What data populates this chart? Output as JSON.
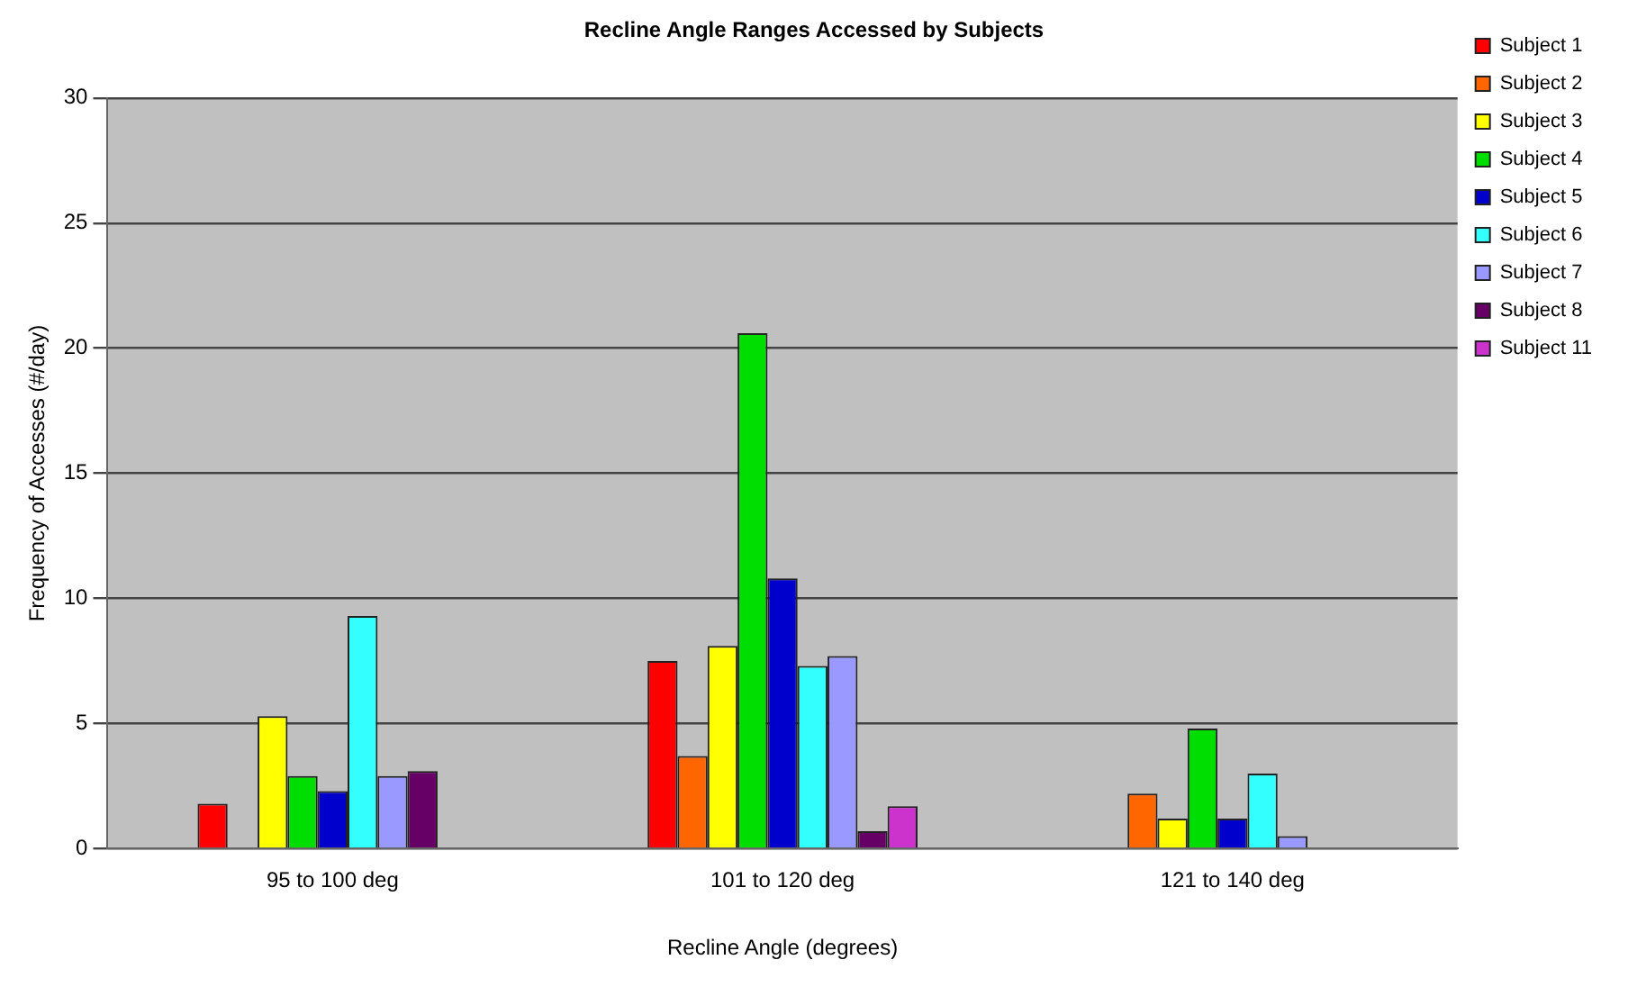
{
  "chart_data": {
    "type": "bar",
    "title": "Recline Angle Ranges Accessed by Subjects",
    "xlabel": "Recline Angle (degrees)",
    "ylabel": "Frequency of Accesses (#/day)",
    "categories": [
      "95 to 100 deg",
      "101 to 120 deg",
      "121 to 140 deg"
    ],
    "series": [
      {
        "name": "Subject 1",
        "color": "#ff0000",
        "values": [
          1.8,
          7.5,
          0
        ]
      },
      {
        "name": "Subject 2",
        "color": "#ff6600",
        "values": [
          null,
          3.7,
          2.2
        ]
      },
      {
        "name": "Subject 3",
        "color": "#ffff00",
        "values": [
          5.3,
          8.1,
          1.2
        ]
      },
      {
        "name": "Subject 4",
        "color": "#00dd00",
        "values": [
          2.9,
          20.6,
          4.8
        ]
      },
      {
        "name": "Subject 5",
        "color": "#0000cc",
        "values": [
          2.3,
          10.8,
          1.2
        ]
      },
      {
        "name": "Subject 6",
        "color": "#33ffff",
        "values": [
          9.3,
          7.3,
          3.0
        ]
      },
      {
        "name": "Subject 7",
        "color": "#9999ff",
        "values": [
          2.9,
          7.7,
          0.5
        ]
      },
      {
        "name": "Subject 8",
        "color": "#660066",
        "values": [
          3.1,
          0.7,
          null
        ]
      },
      {
        "name": "Subject 11",
        "color": "#cc33cc",
        "values": [
          0,
          1.7,
          null
        ]
      }
    ],
    "ylim": [
      0,
      30
    ],
    "yticks": [
      0,
      5,
      10,
      15,
      20,
      25,
      30
    ],
    "grid": "y",
    "legend": "right"
  }
}
